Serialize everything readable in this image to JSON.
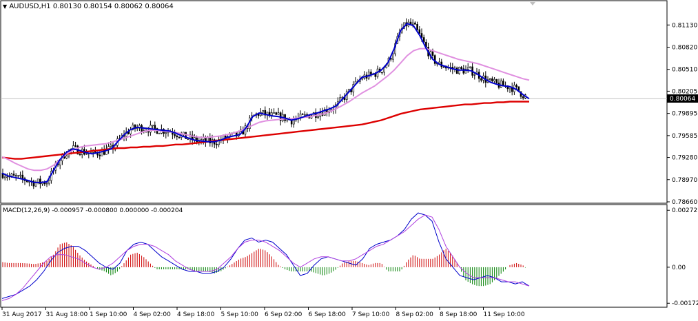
{
  "header": {
    "symbol": "AUDUSD,H1",
    "ohlc": "0.80130 0.80154 0.80062 0.80064"
  },
  "macd_header": {
    "label": "MACD(12,26,9) -0.000957 -0.000800 0.000000 -0.000204"
  },
  "current_price_label": "0.80064",
  "colors": {
    "fast_ma": "#0000cc",
    "slow_ma": "#e090e0",
    "long_ma": "#dd0000",
    "macd_positive": "#cc0000",
    "macd_negative": "#008000",
    "macd_main": "#0000cc",
    "macd_signal": "#b040e0",
    "candles": "#000000"
  },
  "chart_data": [
    {
      "type": "candlestick",
      "symbol": "AUDUSD",
      "timeframe": "H1",
      "ylim": [
        0.7866,
        0.8145
      ],
      "y_ticks": [
        "0.81130",
        "0.80820",
        "0.80510",
        "0.80205",
        "0.79895",
        "0.79585",
        "0.79280",
        "0.78970",
        "0.78660"
      ],
      "x_ticks": [
        "31 Aug 2017",
        "31 Aug 18:00",
        "1 Sep 10:00",
        "4 Sep 02:00",
        "4 Sep 18:00",
        "5 Sep 10:00",
        "6 Sep 02:00",
        "6 Sep 18:00",
        "7 Sep 10:00",
        "8 Sep 02:00",
        "8 Sep 18:00",
        "11 Sep 10:00"
      ],
      "current_price": 0.80064,
      "series": [
        {
          "name": "",
          "values": [
            0.7906,
            0.7902,
            0.79,
            0.7898,
            0.7896,
            0.7893,
            0.7893,
            0.7894,
            0.791,
            0.7925,
            0.7935,
            0.794,
            0.7938,
            0.7935,
            0.7933,
            0.7935,
            0.7937,
            0.794,
            0.795,
            0.796,
            0.7967,
            0.797,
            0.7969,
            0.7968,
            0.7967,
            0.7966,
            0.7965,
            0.7962,
            0.7958,
            0.7955,
            0.7952,
            0.7951,
            0.795,
            0.795,
            0.7952,
            0.7956,
            0.7958,
            0.796,
            0.797,
            0.7985,
            0.799,
            0.7988,
            0.7986,
            0.7985,
            0.7983,
            0.798,
            0.7982,
            0.7985,
            0.7988,
            0.799,
            0.7993,
            0.7996,
            0.8,
            0.801,
            0.802,
            0.803,
            0.804,
            0.8042,
            0.8045,
            0.805,
            0.806,
            0.808,
            0.8105,
            0.8115,
            0.8112,
            0.8098,
            0.808,
            0.8065,
            0.8058,
            0.8055,
            0.8052,
            0.805,
            0.805,
            0.8049,
            0.8044,
            0.8038,
            0.8033,
            0.803,
            0.8028,
            0.8027,
            0.8023,
            0.8016,
            0.801
          ]
        },
        {
          "name": "",
          "values": [
            0.7929,
            0.7925,
            0.792,
            0.7916,
            0.7912,
            0.791,
            0.791,
            0.7912,
            0.7917,
            0.7925,
            0.7933,
            0.7938,
            0.7942,
            0.7944,
            0.7945,
            0.7946,
            0.7947,
            0.7949,
            0.7952,
            0.7955,
            0.7958,
            0.7961,
            0.7964,
            0.7966,
            0.7966,
            0.7965,
            0.7964,
            0.7963,
            0.7961,
            0.7959,
            0.7957,
            0.7956,
            0.7956,
            0.7957,
            0.7958,
            0.796,
            0.7962,
            0.7965,
            0.7969,
            0.7973,
            0.7977,
            0.7979,
            0.798,
            0.7981,
            0.7982,
            0.7982,
            0.7983,
            0.7984,
            0.7985,
            0.7987,
            0.7989,
            0.7992,
            0.7996,
            0.8001,
            0.8006,
            0.8012,
            0.8018,
            0.8023,
            0.8028,
            0.8035,
            0.8042,
            0.805,
            0.806,
            0.807,
            0.8077,
            0.808,
            0.808,
            0.8077,
            0.8074,
            0.8071,
            0.8068,
            0.8065,
            0.8063,
            0.8061,
            0.8059,
            0.8056,
            0.8053,
            0.805,
            0.8047,
            0.8044,
            0.8041,
            0.8038,
            0.8036
          ]
        },
        {
          "name": "",
          "values": [
            0.7928,
            0.7927,
            0.7926,
            0.7926,
            0.7927,
            0.7928,
            0.7929,
            0.793,
            0.7931,
            0.7932,
            0.7933,
            0.7934,
            0.7935,
            0.7936,
            0.7937,
            0.7938,
            0.7939,
            0.794,
            0.7941,
            0.7941,
            0.7942,
            0.7942,
            0.7943,
            0.7943,
            0.7944,
            0.7944,
            0.7945,
            0.7946,
            0.7946,
            0.7947,
            0.7948,
            0.7949,
            0.795,
            0.7951,
            0.7952,
            0.7953,
            0.7954,
            0.7955,
            0.7956,
            0.7957,
            0.7958,
            0.7959,
            0.796,
            0.7961,
            0.7962,
            0.7963,
            0.7964,
            0.7965,
            0.7966,
            0.7967,
            0.7968,
            0.7969,
            0.797,
            0.7971,
            0.7972,
            0.7973,
            0.7974,
            0.7976,
            0.7978,
            0.798,
            0.7983,
            0.7986,
            0.7989,
            0.7991,
            0.7993,
            0.7995,
            0.7996,
            0.7997,
            0.7998,
            0.7999,
            0.8,
            0.8001,
            0.8002,
            0.8002,
            0.8003,
            0.8004,
            0.8004,
            0.8005,
            0.8005,
            0.8006,
            0.8006,
            0.8006,
            0.8006
          ]
        }
      ]
    },
    {
      "type": "macd",
      "title": "MACD(12,26,9)",
      "ylim": [
        -0.00185,
        0.0029
      ],
      "y_ticks": [
        "0.002727",
        "0.00",
        "-0.001726"
      ],
      "histogram": [
        0.00025,
        0.0002,
        0.0002,
        0.0002,
        0.00018,
        0.00015,
        0.0002,
        0.0003,
        0.0006,
        0.0011,
        0.0012,
        0.001,
        0.0006,
        0.0003,
        0.0001,
        -0.0001,
        -0.0002,
        -0.0004,
        -0.0002,
        0.0002,
        0.0006,
        0.0007,
        0.0005,
        0.0002,
        -0.0001,
        -0.0001,
        -0.0001,
        -0.0001,
        -0.0001,
        -0.0001,
        -0.0002,
        -0.0002,
        -0.0002,
        -0.0003,
        -0.0002,
        0.0,
        0.0002,
        0.0004,
        0.0005,
        0.0007,
        0.0009,
        0.0008,
        0.0005,
        0.0001,
        -0.0001,
        -0.0002,
        -0.0002,
        -0.0002,
        -0.0002,
        -0.0003,
        -0.0004,
        -0.0003,
        -0.0001,
        0.0002,
        0.0003,
        0.0003,
        0.0002,
        0.0001,
        0.0002,
        0.0002,
        -0.0002,
        -0.0002,
        -0.0002,
        0.0003,
        0.0006,
        0.0004,
        0.0004,
        0.0004,
        0.0006,
        0.0009,
        0.0006,
        0.0001,
        -0.0006,
        -0.0008,
        -0.0009,
        -0.0009,
        -0.0008,
        -0.0005,
        -0.0002,
        0.0001,
        0.0002,
        0.0001,
        -0.0002
      ],
      "series": [
        {
          "name": "",
          "values": [
            -0.0015,
            -0.0014,
            -0.0013,
            -0.0011,
            -0.0009,
            -0.0006,
            -0.0002,
            0.0003,
            0.0007,
            0.0009,
            0.001,
            0.001,
            0.0008,
            0.0005,
            0.0002,
            0.0,
            -0.0001,
            0.0002,
            0.0008,
            0.0011,
            0.0012,
            0.0011,
            0.0008,
            0.0005,
            0.0003,
            0.0001,
            -0.0001,
            -0.0002,
            -0.0002,
            -0.0003,
            -0.0003,
            -0.0002,
            0.0,
            0.0004,
            0.0009,
            0.0013,
            0.0014,
            0.0012,
            0.0013,
            0.0012,
            0.0009,
            0.0006,
            0.0001,
            -0.0004,
            -0.0003,
            0.0001,
            0.0004,
            0.0005,
            0.0004,
            0.0003,
            0.0002,
            0.0001,
            0.0004,
            0.0009,
            0.0011,
            0.0012,
            0.0013,
            0.0015,
            0.0018,
            0.0023,
            0.0026,
            0.0025,
            0.0022,
            0.0012,
            0.0004,
            0.0,
            -0.0004,
            -0.0005,
            -0.0006,
            -0.0005,
            -0.0004,
            -0.0005,
            -0.0007,
            -0.0007,
            -0.0008,
            -0.0007,
            -0.0009
          ]
        },
        {
          "name": "",
          "values": [
            -0.0016,
            -0.0015,
            -0.0013,
            -0.001,
            -0.0006,
            -0.0002,
            0.0002,
            0.0005,
            0.0006,
            0.0006,
            0.0005,
            0.0004,
            0.0002,
            0.0,
            -0.0001,
            0.0,
            0.0002,
            0.0005,
            0.0008,
            0.001,
            0.0011,
            0.0011,
            0.001,
            0.0008,
            0.0006,
            0.0003,
            0.0001,
            -0.0001,
            -0.0002,
            -0.0002,
            -0.0002,
            -0.0001,
            0.0002,
            0.0005,
            0.0009,
            0.0012,
            0.0013,
            0.0013,
            0.0012,
            0.001,
            0.0008,
            0.0005,
            0.0002,
            0.0,
            0.0002,
            0.0004,
            0.0005,
            0.0005,
            0.0004,
            0.0003,
            0.0003,
            0.0004,
            0.0006,
            0.0008,
            0.001,
            0.0011,
            0.0013,
            0.0015,
            0.0017,
            0.002,
            0.0023,
            0.0025,
            0.0024,
            0.0018,
            0.001,
            0.0005,
            0.0,
            -0.0003,
            -0.0005,
            -0.0005,
            -0.0005,
            -0.0005,
            -0.0006,
            -0.0007,
            -0.0007,
            -0.0008,
            -0.0009
          ]
        }
      ]
    }
  ]
}
